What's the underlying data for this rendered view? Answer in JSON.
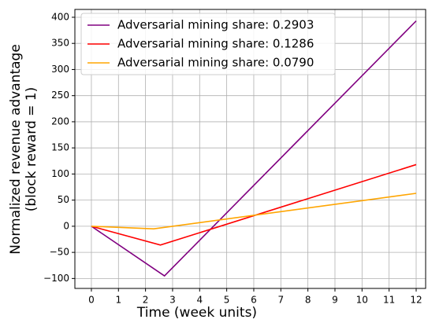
{
  "chart_data": {
    "type": "line",
    "xlabel": "Time (week units)",
    "ylabel": [
      "Normalized revenue advantage",
      "(block reward = 1)"
    ],
    "series": [
      {
        "name": "Adversarial mining share: 0.2903",
        "color": "#800080",
        "x": [
          0,
          2.7,
          12
        ],
        "values": [
          0,
          -95,
          393
        ]
      },
      {
        "name": "Adversarial mining share: 0.1286",
        "color": "#ff0000",
        "x": [
          0,
          2.55,
          12
        ],
        "values": [
          0,
          -36,
          118
        ]
      },
      {
        "name": "Adversarial mining share: 0.0790",
        "color": "#ffa500",
        "x": [
          0,
          2.3,
          12
        ],
        "values": [
          0,
          -5,
          63
        ]
      }
    ],
    "xlim": [
      -0.61,
      12.35
    ],
    "xticks": [
      0,
      1,
      2,
      3,
      4,
      5,
      6,
      7,
      8,
      9,
      10,
      11,
      12
    ],
    "ylim": [
      -119,
      415
    ],
    "yticks": [
      {
        "value": -100,
        "label": "−100"
      },
      {
        "value": -50,
        "label": "−50"
      },
      0,
      50,
      100,
      150,
      200,
      250,
      300,
      350,
      400
    ],
    "grid": true,
    "legend": "upper-left"
  }
}
